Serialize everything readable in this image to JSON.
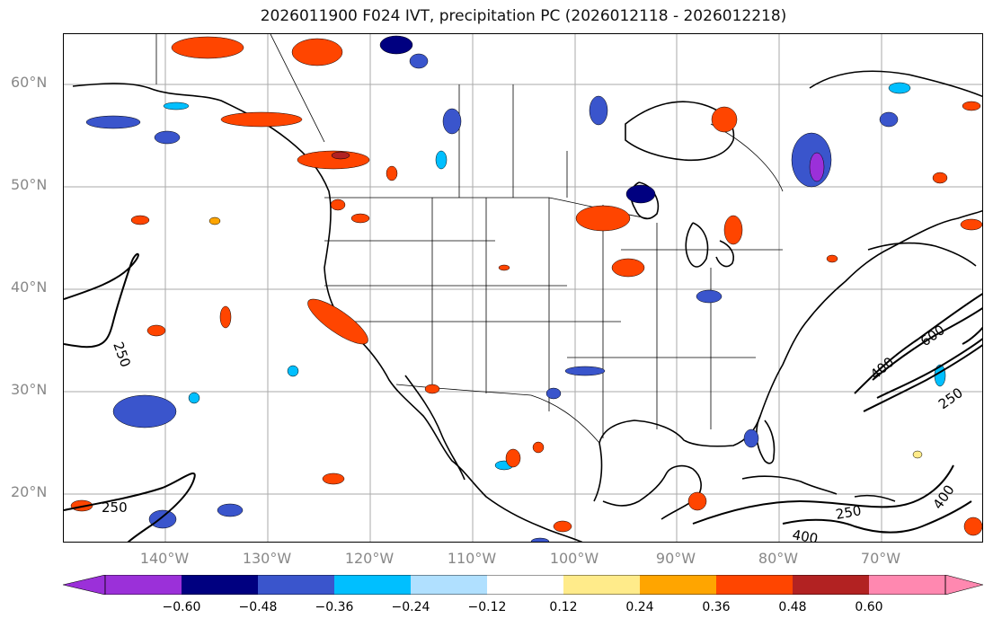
{
  "title": "2026011900 F024 IVT, precipitation PC (2026012118 - 2026012218)",
  "latitude_labels": [
    "60°N",
    "50°N",
    "40°N",
    "30°N",
    "20°N"
  ],
  "longitude_labels": [
    "140°W",
    "130°W",
    "120°W",
    "110°W",
    "100°W",
    "90°W",
    "80°W",
    "70°W"
  ],
  "ivt_contour_labels": {
    "west_250": "250",
    "southwest_250": "250",
    "atlantic_400": "400",
    "atlantic_600": "600",
    "atlantic_250": "250",
    "caribbean_250": "250",
    "caribbean_400_a": "400",
    "caribbean_400_b": "400"
  },
  "colorbar": {
    "tick_labels": [
      "−0.60",
      "−0.48",
      "−0.36",
      "−0.24",
      "−0.12",
      "0.12",
      "0.24",
      "0.36",
      "0.48",
      "0.60"
    ],
    "colors": [
      "#9b30d9",
      "#000080",
      "#3a55cc",
      "#00bfff",
      "#b0e0ff",
      "#ffffff",
      "#ffeb8a",
      "#ffa500",
      "#ff4500",
      "#b22222",
      "#ff88b0"
    ]
  },
  "colors": {
    "neg_strong": "#3a55cc",
    "neg_medium": "#00bfff",
    "neg_darkest": "#000080",
    "neg_purple": "#9b30d9",
    "pos_medium": "#ff4500",
    "pos_light": "#ffa500",
    "pos_yellow": "#ffeb8a",
    "pos_dark": "#b22222"
  }
}
